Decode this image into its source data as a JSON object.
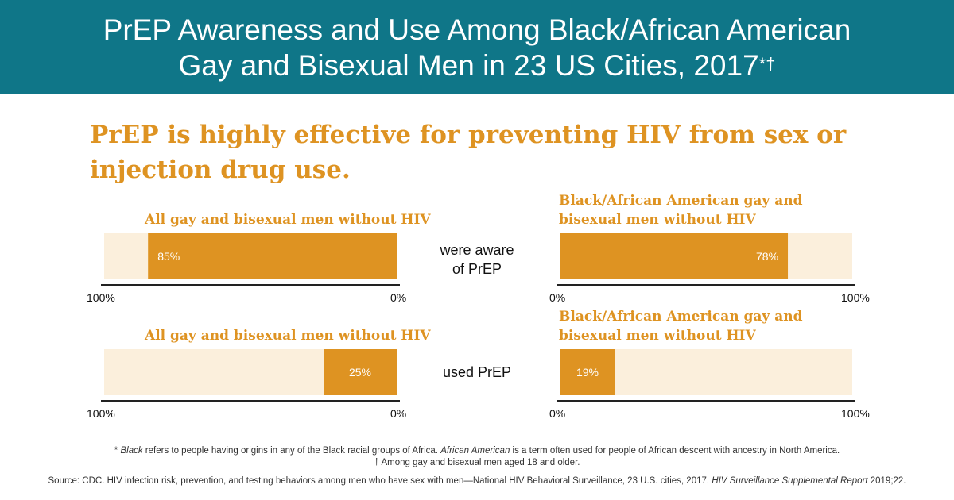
{
  "header": {
    "title_line1": "PrEP Awareness and Use Among Black/African American",
    "title_line2": "Gay and Bisexual Men in 23 US Cities, 2017",
    "title_marks": "*†",
    "background": "#0f7688"
  },
  "headline": "PrEP is highly effective for preventing HIV from sex or injection drug use.",
  "colors": {
    "bar_fill": "#de9322",
    "bar_track": "#fbefdc",
    "axis": "#222222"
  },
  "chart_data": [
    {
      "type": "bar",
      "orientation": "horizontal",
      "direction": "right-to-left",
      "title": "All gay and bisexual men without HIV",
      "measure": "were aware of PrEP",
      "value": 85,
      "value_label": "85%",
      "xlim": [
        0,
        100
      ],
      "tick_labels": [
        "100%",
        "0%"
      ]
    },
    {
      "type": "bar",
      "orientation": "horizontal",
      "direction": "left-to-right",
      "title": "Black/African American gay and bisexual men without HIV",
      "measure": "were aware of PrEP",
      "value": 78,
      "value_label": "78%",
      "xlim": [
        0,
        100
      ],
      "tick_labels": [
        "0%",
        "100%"
      ]
    },
    {
      "type": "bar",
      "orientation": "horizontal",
      "direction": "right-to-left",
      "title": "All gay and bisexual men without HIV",
      "measure": "used PrEP",
      "value": 25,
      "value_label": "25%",
      "xlim": [
        0,
        100
      ],
      "tick_labels": [
        "100%",
        "0%"
      ]
    },
    {
      "type": "bar",
      "orientation": "horizontal",
      "direction": "left-to-right",
      "title": "Black/African American gay and bisexual men without HIV",
      "measure": "used PrEP",
      "value": 19,
      "value_label": "19%",
      "xlim": [
        0,
        100
      ],
      "tick_labels": [
        "0%",
        "100%"
      ]
    }
  ],
  "measures": {
    "aware_line1": "were aware",
    "aware_line2": "of PrEP",
    "used": "used PrEP"
  },
  "footnotes": {
    "black_term": "Black",
    "black_def": " refers to people having origins in any of the Black racial groups of Africa. ",
    "aa_term": "African American",
    "aa_def": " is a term often used for people of African descent with ancestry in North America.",
    "age": "Among gay and bisexual men aged 18 and older.",
    "star": "*",
    "dagger": "†"
  },
  "source": {
    "text": "Source: CDC. HIV infection risk, prevention, and testing behaviors among men who have sex with men—National HIV Behavioral Surveillance, 23 U.S. cities, 2017. ",
    "journal": "HIV Surveillance Supplemental Report",
    "citation": " 2019;22."
  }
}
